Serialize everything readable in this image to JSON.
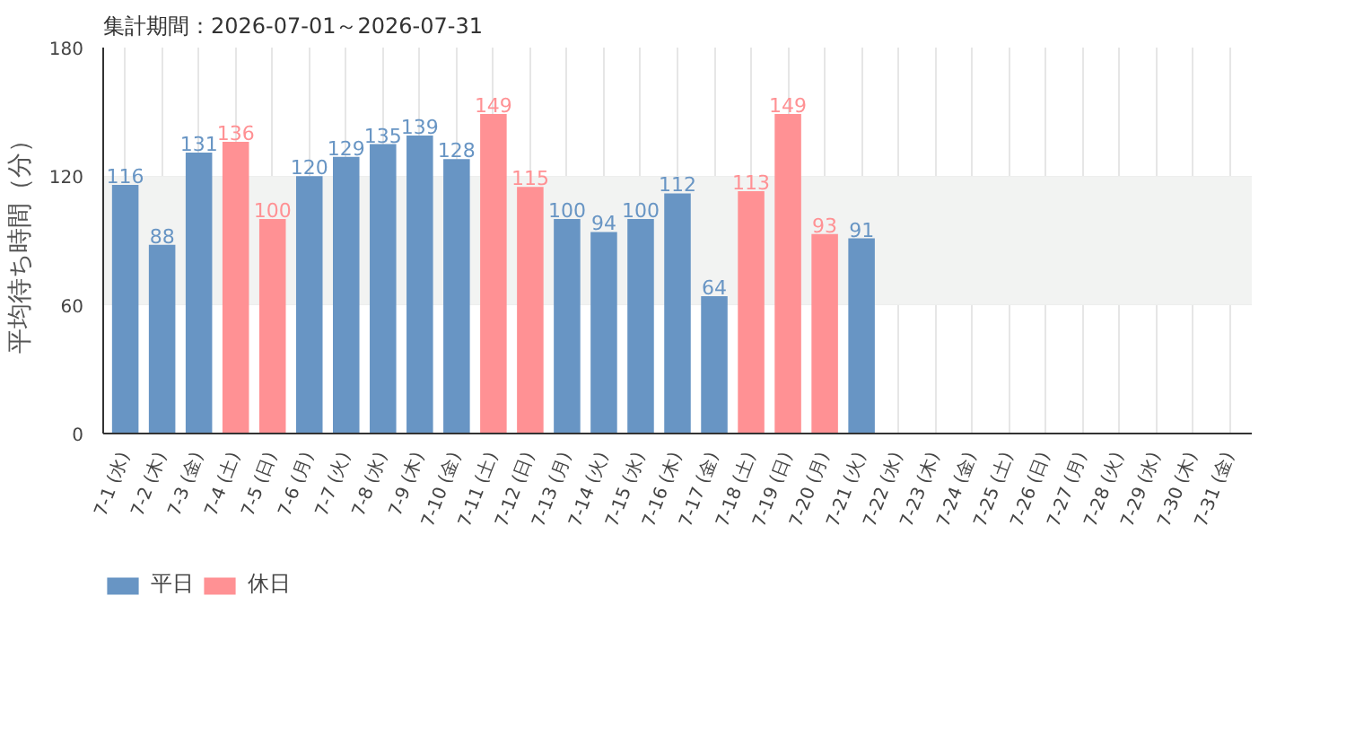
{
  "chart_data": {
    "type": "bar",
    "title": "集計期間：2026-07-01～2026-07-31",
    "ylabel": "平均待ち時間（分）",
    "categories": [
      "7-1 (水)",
      "7-2 (木)",
      "7-3 (金)",
      "7-4 (土)",
      "7-5 (日)",
      "7-6 (月)",
      "7-7 (火)",
      "7-8 (水)",
      "7-9 (木)",
      "7-10 (金)",
      "7-11 (土)",
      "7-12 (日)",
      "7-13 (月)",
      "7-14 (火)",
      "7-15 (水)",
      "7-16 (木)",
      "7-17 (金)",
      "7-18 (土)",
      "7-19 (日)",
      "7-20 (月)",
      "7-21 (火)",
      "7-22 (水)",
      "7-23 (木)",
      "7-24 (金)",
      "7-25 (土)",
      "7-26 (日)",
      "7-27 (月)",
      "7-28 (火)",
      "7-29 (水)",
      "7-30 (木)",
      "7-31 (金)"
    ],
    "series": [
      {
        "name": "平日",
        "color": "#6895c4",
        "values": [
          116,
          88,
          131,
          null,
          null,
          120,
          129,
          135,
          139,
          128,
          null,
          null,
          100,
          94,
          100,
          112,
          64,
          null,
          null,
          null,
          91,
          null,
          null,
          null,
          null,
          null,
          null,
          null,
          null,
          null,
          null
        ]
      },
      {
        "name": "休日",
        "color": "#ff9194",
        "values": [
          null,
          null,
          null,
          136,
          100,
          null,
          null,
          null,
          null,
          null,
          149,
          115,
          null,
          null,
          null,
          null,
          null,
          113,
          149,
          93,
          null,
          null,
          null,
          null,
          null,
          null,
          null,
          null,
          null,
          null,
          null
        ]
      }
    ],
    "ylim": [
      0,
      180
    ],
    "yticks": [
      0,
      60,
      120,
      180
    ],
    "bands": [
      {
        "axis": "y",
        "from": 60,
        "to": 120,
        "color": "#f2f3f2"
      }
    ],
    "grid": true,
    "data_labels": true,
    "legend": "bottom left"
  }
}
